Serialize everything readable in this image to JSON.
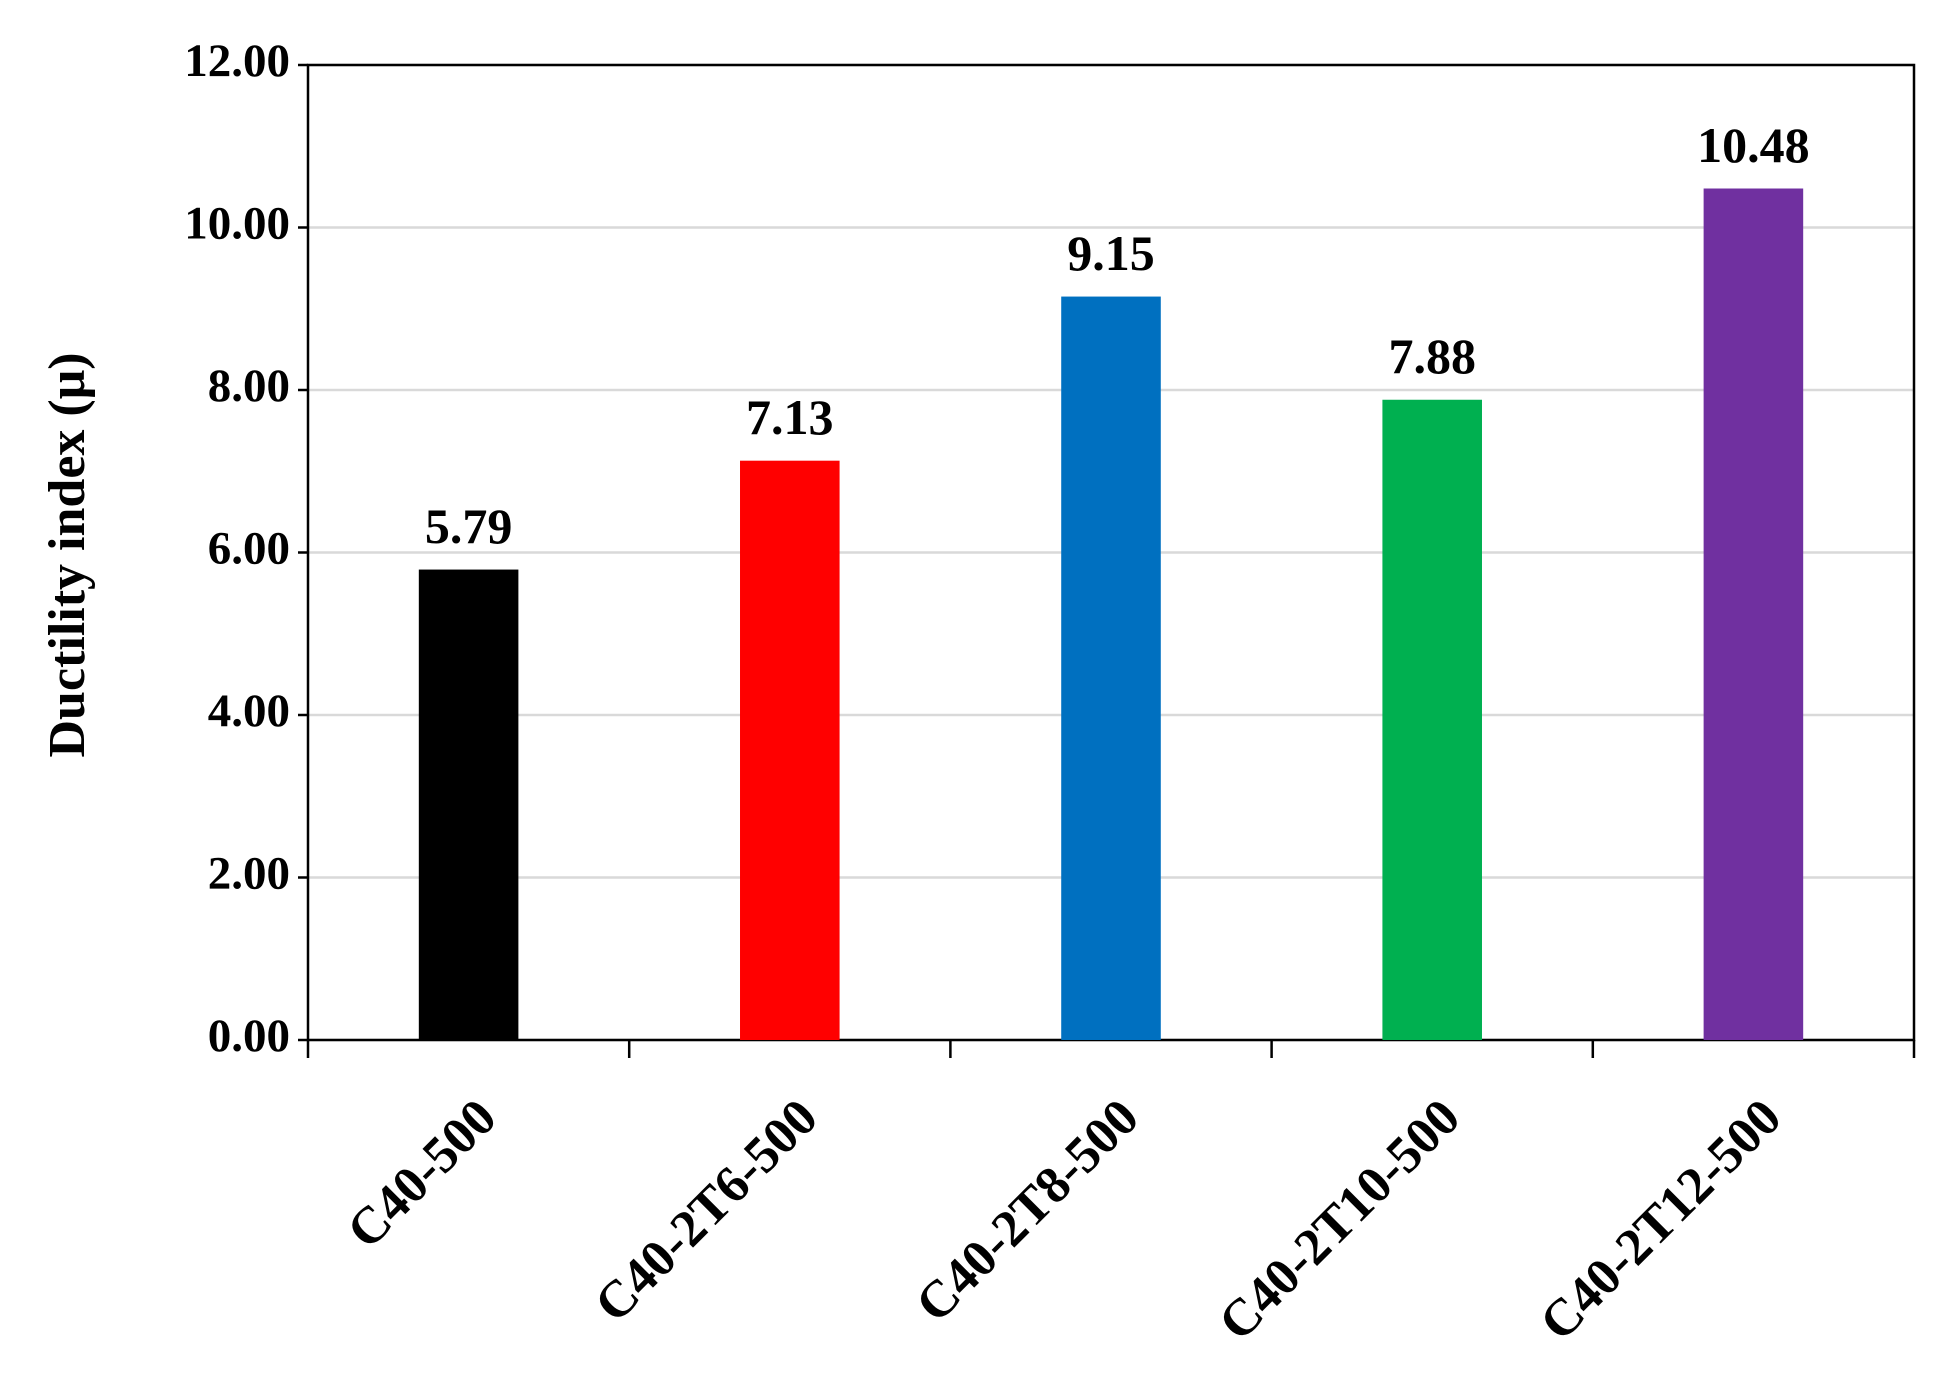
{
  "chart_data": {
    "type": "bar",
    "y_label": "Ductility index (μ)",
    "categories": [
      "C40-500",
      "C40-2T6-500",
      "C40-2T8-500",
      "C40-2T10-500",
      "C40-2T12-500"
    ],
    "values": [
      5.79,
      7.13,
      9.15,
      7.88,
      10.48
    ],
    "colors": [
      "#000000",
      "#ff0000",
      "#0070c0",
      "#00b050",
      "#7030a0"
    ],
    "ylim": [
      0,
      12
    ],
    "yticks": [
      {
        "value": 0,
        "label": "0.00"
      },
      {
        "value": 2,
        "label": "2.00"
      },
      {
        "value": 4,
        "label": "4.00"
      },
      {
        "value": 6,
        "label": "6.00"
      },
      {
        "value": 8,
        "label": "8.00"
      },
      {
        "value": 10,
        "label": "10.00"
      },
      {
        "value": 12,
        "label": "12.00"
      }
    ],
    "grid": true
  }
}
